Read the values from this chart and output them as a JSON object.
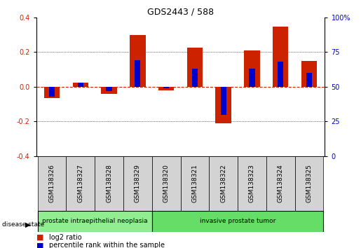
{
  "title": "GDS2443 / 588",
  "samples": [
    "GSM138326",
    "GSM138327",
    "GSM138328",
    "GSM138329",
    "GSM138320",
    "GSM138321",
    "GSM138322",
    "GSM138323",
    "GSM138324",
    "GSM138325"
  ],
  "log2_ratio": [
    -0.065,
    0.025,
    -0.04,
    0.3,
    -0.02,
    0.225,
    -0.21,
    0.21,
    0.345,
    0.15
  ],
  "pct_rank_raw": [
    43,
    53,
    47,
    69,
    49,
    63,
    30,
    63,
    68,
    60
  ],
  "disease_groups": [
    {
      "label": "prostate intraepithelial neoplasia",
      "start": 0,
      "end": 4,
      "color": "#90ee90"
    },
    {
      "label": "invasive prostate tumor",
      "start": 4,
      "end": 10,
      "color": "#66dd66"
    }
  ],
  "red_color": "#cc2200",
  "blue_color": "#0000cc",
  "ylim": [
    -0.4,
    0.4
  ],
  "yticks_left": [
    -0.4,
    -0.2,
    0.0,
    0.2,
    0.4
  ],
  "label_group_bg": "#d3d3d3",
  "zero_line_color": "#cc2200",
  "label_fontsize": 6.5,
  "tick_fontsize": 7
}
